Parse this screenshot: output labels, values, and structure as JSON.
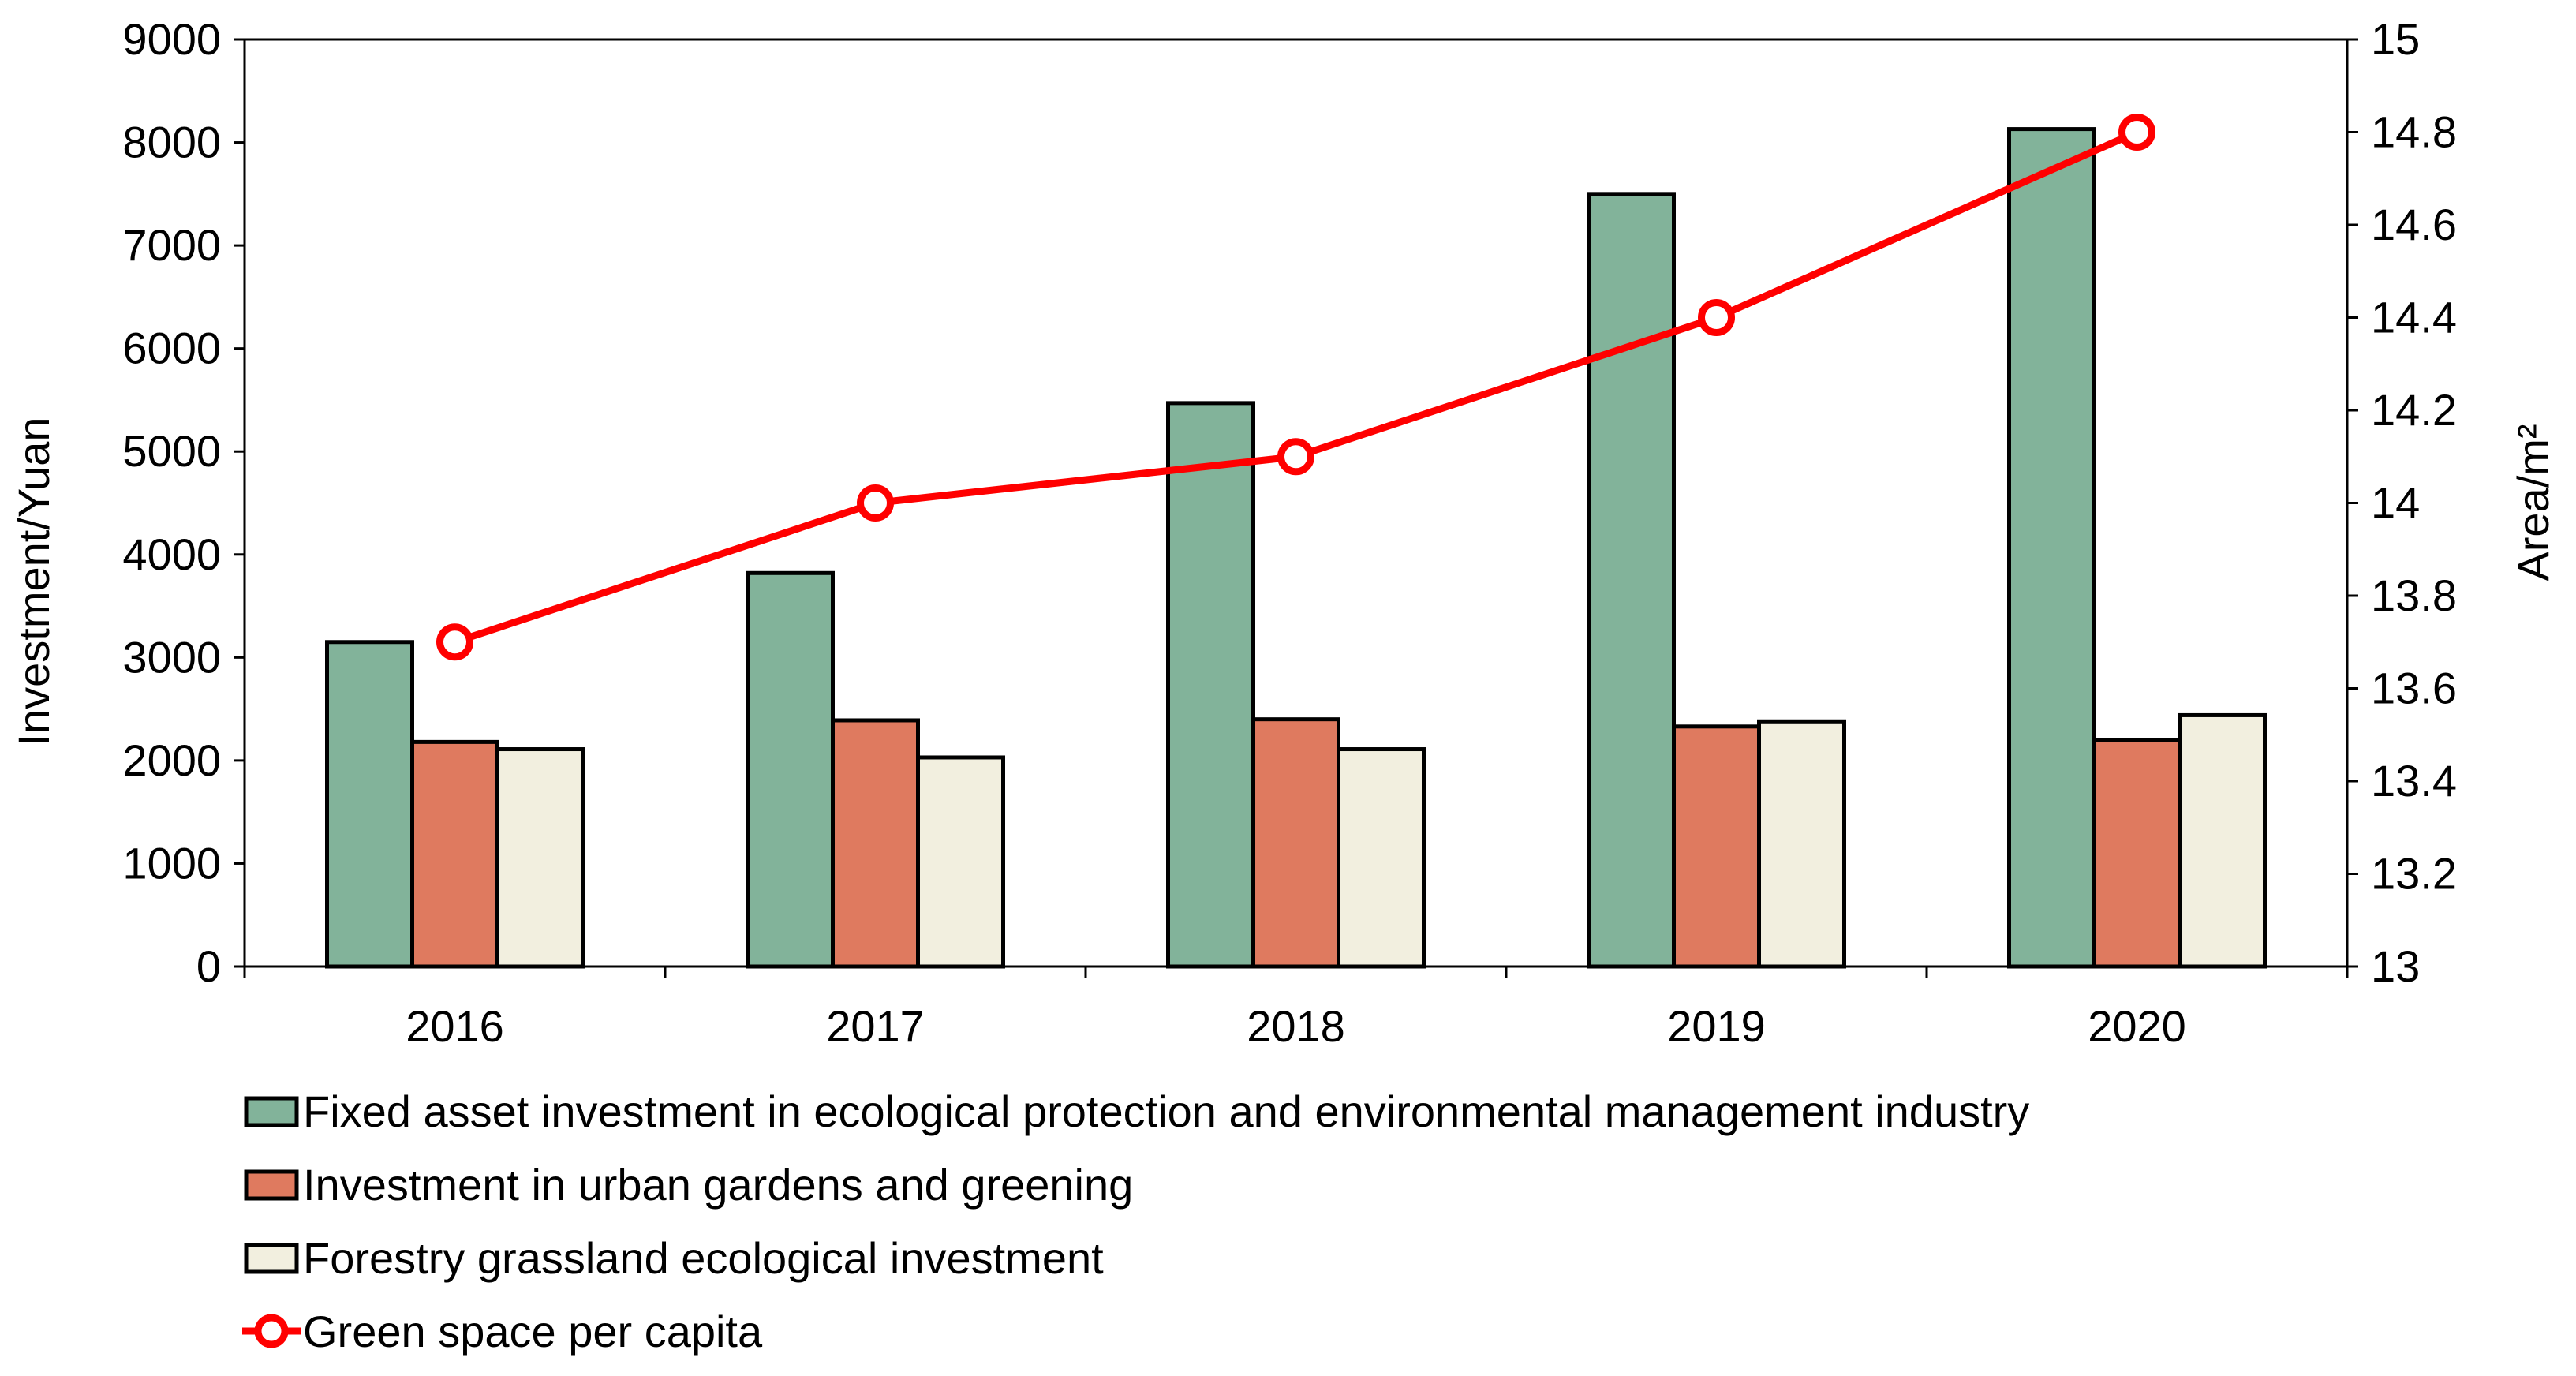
{
  "chart_data": {
    "type": "bar",
    "title": "",
    "categories": [
      "2016",
      "2017",
      "2018",
      "2019",
      "2020"
    ],
    "series": [
      {
        "name": "Fixed asset investment in ecological protection and environmental management industry",
        "type": "bar",
        "axis": "left",
        "color": "#82b39a",
        "values": [
          3150,
          3820,
          5470,
          7500,
          8130
        ]
      },
      {
        "name": "Investment in urban gardens and greening",
        "type": "bar",
        "axis": "left",
        "color": "#df7a5f",
        "values": [
          2180,
          2390,
          2400,
          2330,
          2200
        ]
      },
      {
        "name": "Forestry grassland ecological investment",
        "type": "bar",
        "axis": "left",
        "color": "#f2efdf",
        "values": [
          2110,
          2030,
          2110,
          2380,
          2440
        ]
      },
      {
        "name": "Green space per capita",
        "type": "line",
        "axis": "right",
        "color": "#ff0000",
        "values": [
          13.7,
          14.0,
          14.1,
          14.4,
          14.8
        ]
      }
    ],
    "y_left": {
      "label": "Investment/Yuan",
      "min": 0,
      "max": 9000,
      "ticks": [
        "0",
        "1000",
        "2000",
        "3000",
        "4000",
        "5000",
        "6000",
        "7000",
        "8000",
        "9000"
      ]
    },
    "y_right": {
      "label": "Area/m²",
      "min": 13,
      "max": 15,
      "ticks": [
        "13",
        "13.2",
        "13.4",
        "13.6",
        "13.8",
        "14",
        "14.2",
        "14.4",
        "14.6",
        "14.8",
        "15"
      ]
    },
    "legend_position": "bottom-left",
    "grid": false
  }
}
